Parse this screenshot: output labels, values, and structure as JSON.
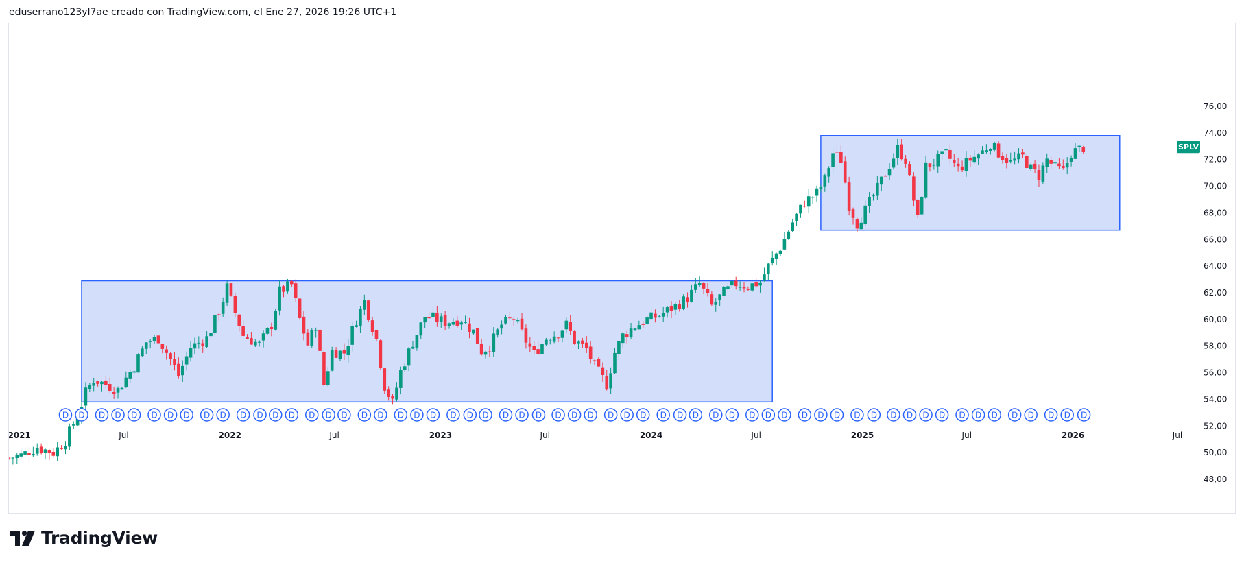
{
  "caption": "eduserrano123yl7ae creado con TradingView.com, el Ene 27, 2026 19:26 UTC+1",
  "brand": {
    "name": "TradingView"
  },
  "colors": {
    "up": "#26a69a",
    "up_body": "#089981",
    "down": "#f23645",
    "box_fill": "#d1dcfb",
    "box_border": "#2962ff",
    "marker": "#2962ff",
    "axis_text": "#131722",
    "ticker_bg": "#089981"
  },
  "chart_data": {
    "type": "candlestick",
    "symbol": "SPLV",
    "last_price": 72.9,
    "ylim": [
      47,
      77
    ],
    "y_ticks": [
      "48,00",
      "50,00",
      "52,00",
      "54,00",
      "56,00",
      "58,00",
      "60,00",
      "62,00",
      "64,00",
      "66,00",
      "68,00",
      "70,00",
      "72,00",
      "74,00",
      "76,00"
    ],
    "x_range": [
      "2020-12-14",
      "2026-08-01"
    ],
    "x_ticks": [
      {
        "date": "2021-01-01",
        "label": "2021",
        "bold": true
      },
      {
        "date": "2021-07-01",
        "label": "Jul",
        "bold": false
      },
      {
        "date": "2022-01-01",
        "label": "2022",
        "bold": true
      },
      {
        "date": "2022-07-01",
        "label": "Jul",
        "bold": false
      },
      {
        "date": "2023-01-01",
        "label": "2023",
        "bold": true
      },
      {
        "date": "2023-07-01",
        "label": "Jul",
        "bold": false
      },
      {
        "date": "2024-01-01",
        "label": "2024",
        "bold": true
      },
      {
        "date": "2024-07-01",
        "label": "Jul",
        "bold": false
      },
      {
        "date": "2025-01-01",
        "label": "2025",
        "bold": true
      },
      {
        "date": "2025-07-01",
        "label": "Jul",
        "bold": false
      },
      {
        "date": "2026-01-01",
        "label": "2026",
        "bold": true
      },
      {
        "date": "2026-07-01",
        "label": "Jul",
        "bold": false
      }
    ],
    "rectangles": [
      {
        "start": "2021-04-19",
        "end": "2024-07-29",
        "low": 53.8,
        "high": 62.9
      },
      {
        "start": "2024-10-21",
        "end": "2026-03-23",
        "low": 66.7,
        "high": 73.8
      }
    ],
    "dividend_marker_label": "D",
    "dividend_dates": [
      "2021-03-22",
      "2021-04-19",
      "2021-05-24",
      "2021-06-21",
      "2021-07-19",
      "2021-08-23",
      "2021-09-20",
      "2021-10-18",
      "2021-11-22",
      "2021-12-20",
      "2022-01-24",
      "2022-02-22",
      "2022-03-21",
      "2022-04-18",
      "2022-05-23",
      "2022-06-21",
      "2022-07-18",
      "2022-08-22",
      "2022-09-19",
      "2022-10-24",
      "2022-11-21",
      "2022-12-19",
      "2023-01-23",
      "2023-02-21",
      "2023-03-20",
      "2023-04-24",
      "2023-05-22",
      "2023-06-20",
      "2023-07-24",
      "2023-08-21",
      "2023-09-18",
      "2023-10-23",
      "2023-11-20",
      "2023-12-18",
      "2024-01-22",
      "2024-02-20",
      "2024-03-18",
      "2024-04-22",
      "2024-05-20",
      "2024-06-24",
      "2024-07-22",
      "2024-08-19",
      "2024-09-23",
      "2024-10-21",
      "2024-11-18",
      "2024-12-23",
      "2025-01-21",
      "2025-02-24",
      "2025-03-24",
      "2025-04-21",
      "2025-05-19",
      "2025-06-23",
      "2025-07-21",
      "2025-08-18",
      "2025-09-22",
      "2025-10-20",
      "2025-11-24",
      "2025-12-22",
      "2026-01-20"
    ],
    "anchors": [
      [
        "2020-12-14",
        49.6
      ],
      [
        "2021-01-04",
        49.8
      ],
      [
        "2021-02-01",
        50.4
      ],
      [
        "2021-03-01",
        50.0
      ],
      [
        "2021-03-22",
        50.9
      ],
      [
        "2021-04-12",
        52.8
      ],
      [
        "2021-04-26",
        54.5
      ],
      [
        "2021-05-10",
        55.5
      ],
      [
        "2021-06-01",
        55.1
      ],
      [
        "2021-06-21",
        54.7
      ],
      [
        "2021-07-19",
        56.5
      ],
      [
        "2021-08-09",
        58.3
      ],
      [
        "2021-08-30",
        58.6
      ],
      [
        "2021-09-20",
        57.0
      ],
      [
        "2021-10-04",
        55.8
      ],
      [
        "2021-10-25",
        57.9
      ],
      [
        "2021-11-22",
        58.6
      ],
      [
        "2021-12-13",
        60.6
      ],
      [
        "2021-12-27",
        62.4
      ],
      [
        "2022-01-10",
        60.5
      ],
      [
        "2022-01-24",
        58.8
      ],
      [
        "2022-02-21",
        58.1
      ],
      [
        "2022-03-14",
        59.6
      ],
      [
        "2022-03-28",
        62.1
      ],
      [
        "2022-04-18",
        62.6
      ],
      [
        "2022-05-02",
        60.0
      ],
      [
        "2022-05-16",
        58.1
      ],
      [
        "2022-05-30",
        59.6
      ],
      [
        "2022-06-13",
        55.1
      ],
      [
        "2022-06-27",
        57.6
      ],
      [
        "2022-07-18",
        57.5
      ],
      [
        "2022-08-08",
        60.0
      ],
      [
        "2022-08-22",
        61.4
      ],
      [
        "2022-09-12",
        58.5
      ],
      [
        "2022-09-26",
        55.0
      ],
      [
        "2022-10-10",
        53.7
      ],
      [
        "2022-10-24",
        56.1
      ],
      [
        "2022-11-14",
        58.3
      ],
      [
        "2022-12-05",
        60.2
      ],
      [
        "2022-12-19",
        60.1
      ],
      [
        "2023-01-09",
        59.8
      ],
      [
        "2023-02-06",
        60.0
      ],
      [
        "2023-02-27",
        59.1
      ],
      [
        "2023-03-13",
        57.6
      ],
      [
        "2023-03-27",
        58.0
      ],
      [
        "2023-04-17",
        59.6
      ],
      [
        "2023-05-08",
        60.1
      ],
      [
        "2023-05-29",
        58.4
      ],
      [
        "2023-06-12",
        57.4
      ],
      [
        "2023-07-03",
        58.6
      ],
      [
        "2023-07-24",
        59.0
      ],
      [
        "2023-08-07",
        59.6
      ],
      [
        "2023-08-21",
        58.4
      ],
      [
        "2023-09-11",
        57.8
      ],
      [
        "2023-09-25",
        56.5
      ],
      [
        "2023-10-16",
        55.1
      ],
      [
        "2023-10-30",
        57.5
      ],
      [
        "2023-11-13",
        58.8
      ],
      [
        "2023-12-04",
        59.5
      ],
      [
        "2023-12-25",
        60.0
      ],
      [
        "2024-01-15",
        60.3
      ],
      [
        "2024-02-12",
        61.0
      ],
      [
        "2024-03-04",
        61.6
      ],
      [
        "2024-03-25",
        62.7
      ],
      [
        "2024-04-15",
        61.0
      ],
      [
        "2024-05-06",
        62.0
      ],
      [
        "2024-05-27",
        62.7
      ],
      [
        "2024-06-17",
        62.5
      ],
      [
        "2024-07-08",
        62.8
      ],
      [
        "2024-07-22",
        64.0
      ],
      [
        "2024-08-12",
        65.4
      ],
      [
        "2024-09-02",
        67.3
      ],
      [
        "2024-09-23",
        68.8
      ],
      [
        "2024-10-14",
        69.5
      ],
      [
        "2024-10-28",
        70.5
      ],
      [
        "2024-11-11",
        72.5
      ],
      [
        "2024-11-25",
        72.0
      ],
      [
        "2024-12-09",
        68.6
      ],
      [
        "2024-12-23",
        67.2
      ],
      [
        "2025-01-06",
        68.2
      ],
      [
        "2025-01-27",
        69.8
      ],
      [
        "2025-02-17",
        71.6
      ],
      [
        "2025-03-03",
        72.8
      ],
      [
        "2025-03-17",
        72.0
      ],
      [
        "2025-04-07",
        67.5
      ],
      [
        "2025-04-21",
        71.5
      ],
      [
        "2025-05-05",
        71.8
      ],
      [
        "2025-05-26",
        72.4
      ],
      [
        "2025-06-16",
        71.3
      ],
      [
        "2025-07-07",
        72.0
      ],
      [
        "2025-07-28",
        72.6
      ],
      [
        "2025-08-11",
        73.2
      ],
      [
        "2025-08-25",
        72.5
      ],
      [
        "2025-09-15",
        71.8
      ],
      [
        "2025-10-06",
        72.2
      ],
      [
        "2025-10-20",
        71.3
      ],
      [
        "2025-11-03",
        70.8
      ],
      [
        "2025-11-17",
        72.0
      ],
      [
        "2025-12-01",
        71.4
      ],
      [
        "2025-12-15",
        71.1
      ],
      [
        "2025-12-29",
        72.5
      ],
      [
        "2026-01-19",
        72.9
      ]
    ]
  }
}
